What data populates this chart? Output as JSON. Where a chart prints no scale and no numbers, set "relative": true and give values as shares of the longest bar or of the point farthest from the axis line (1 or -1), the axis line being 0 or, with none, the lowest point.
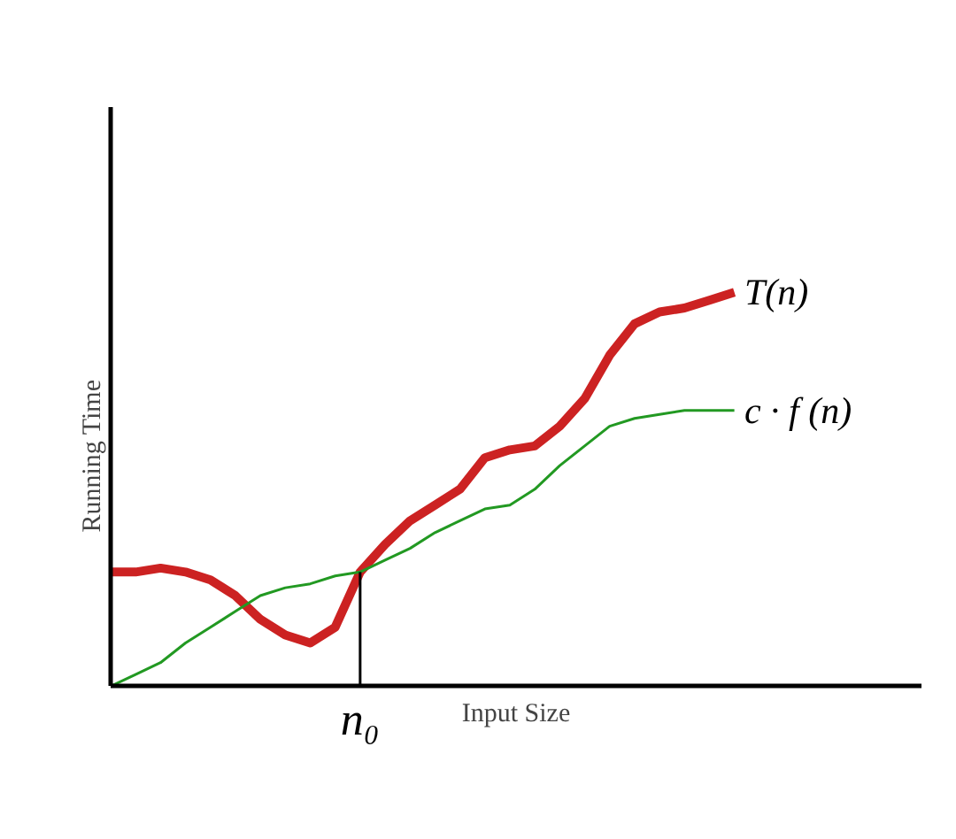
{
  "chart_data": {
    "type": "line",
    "relative": true,
    "xlabel": "Input Size",
    "ylabel": "Running Time",
    "categories": [
      null,
      null,
      null,
      null,
      null,
      null,
      null,
      null,
      null,
      null,
      null,
      null,
      null,
      null,
      null,
      null,
      null,
      null,
      null,
      null,
      null,
      null,
      null,
      null,
      null,
      null
    ],
    "series": [
      {
        "name": "T(n)",
        "color": "#cc2222",
        "values": [
          0.29,
          0.29,
          0.3,
          0.29,
          0.27,
          0.23,
          0.17,
          0.13,
          0.11,
          0.15,
          0.29,
          0.36,
          0.42,
          0.46,
          0.5,
          0.58,
          0.6,
          0.61,
          0.66,
          0.73,
          0.84,
          0.92,
          0.95,
          0.96,
          0.98,
          1
        ]
      },
      {
        "name": "c · f (n)",
        "color": "#229922",
        "values": [
          0,
          0.03,
          0.06,
          0.11,
          0.15,
          0.19,
          0.23,
          0.25,
          0.26,
          0.28,
          0.29,
          0.32,
          0.35,
          0.39,
          0.42,
          0.45,
          0.46,
          0.5,
          0.56,
          0.61,
          0.66,
          0.68,
          0.69,
          0.7,
          0.7,
          0.7
        ]
      }
    ],
    "annotations": [
      "n₀"
    ],
    "marker": "none",
    "line_style": "solid"
  }
}
